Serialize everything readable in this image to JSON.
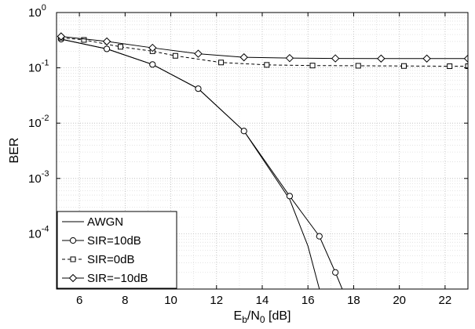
{
  "chart_data": {
    "type": "line",
    "xlabel": {
      "main": "E",
      "sub1": "b",
      "mid": "/N",
      "sub2": "0",
      "tail": " [dB]"
    },
    "ylabel": "BER",
    "xlim": [
      5,
      23
    ],
    "ylim": [
      1e-05,
      1
    ],
    "yscale": "log",
    "grid": true,
    "legend_position": "bottom-left",
    "x_ticks": [
      "6",
      "8",
      "10",
      "12",
      "14",
      "16",
      "18",
      "20",
      "22"
    ],
    "x_tick_values": [
      6,
      8,
      10,
      12,
      14,
      16,
      18,
      20,
      22
    ],
    "y_ticks": [
      {
        "base": "10",
        "exp": "0",
        "value": 1
      },
      {
        "base": "10",
        "exp": "-1",
        "value": 0.1
      },
      {
        "base": "10",
        "exp": "-2",
        "value": 0.01
      },
      {
        "base": "10",
        "exp": "-3",
        "value": 0.001
      },
      {
        "base": "10",
        "exp": "-4",
        "value": 0.0001
      }
    ],
    "series": [
      {
        "name": "AWGN",
        "style": "solid",
        "marker": "none",
        "x": [
          5.2,
          7.2,
          9.2,
          11.2,
          13.2,
          15.2,
          16.0,
          16.5
        ],
        "y": [
          0.33,
          0.22,
          0.115,
          0.042,
          0.0072,
          0.00042,
          6e-05,
          1e-05
        ]
      },
      {
        "name": "SIR=10dB",
        "style": "solid",
        "marker": "circle",
        "x": [
          5.2,
          7.2,
          9.2,
          11.2,
          13.2,
          15.2,
          16.5,
          17.2,
          17.5
        ],
        "y": [
          0.33,
          0.22,
          0.115,
          0.042,
          0.0072,
          0.00048,
          9e-05,
          2e-05,
          1e-05
        ]
      },
      {
        "name": "SIR=0dB",
        "style": "dashed",
        "marker": "square",
        "x": [
          5.2,
          6.2,
          7.8,
          9.2,
          10.2,
          12.2,
          14.2,
          16.2,
          18.2,
          20.2,
          22.2,
          23
        ],
        "y": [
          0.35,
          0.32,
          0.24,
          0.2,
          0.165,
          0.125,
          0.113,
          0.11,
          0.109,
          0.108,
          0.107,
          0.107
        ]
      },
      {
        "name": "SIR=−10dB",
        "style": "solid",
        "marker": "diamond",
        "x": [
          5.2,
          7.2,
          9.2,
          11.2,
          13.2,
          15.2,
          17.2,
          19.2,
          21.2,
          23
        ],
        "y": [
          0.37,
          0.3,
          0.23,
          0.18,
          0.155,
          0.15,
          0.148,
          0.147,
          0.147,
          0.147
        ]
      }
    ]
  }
}
